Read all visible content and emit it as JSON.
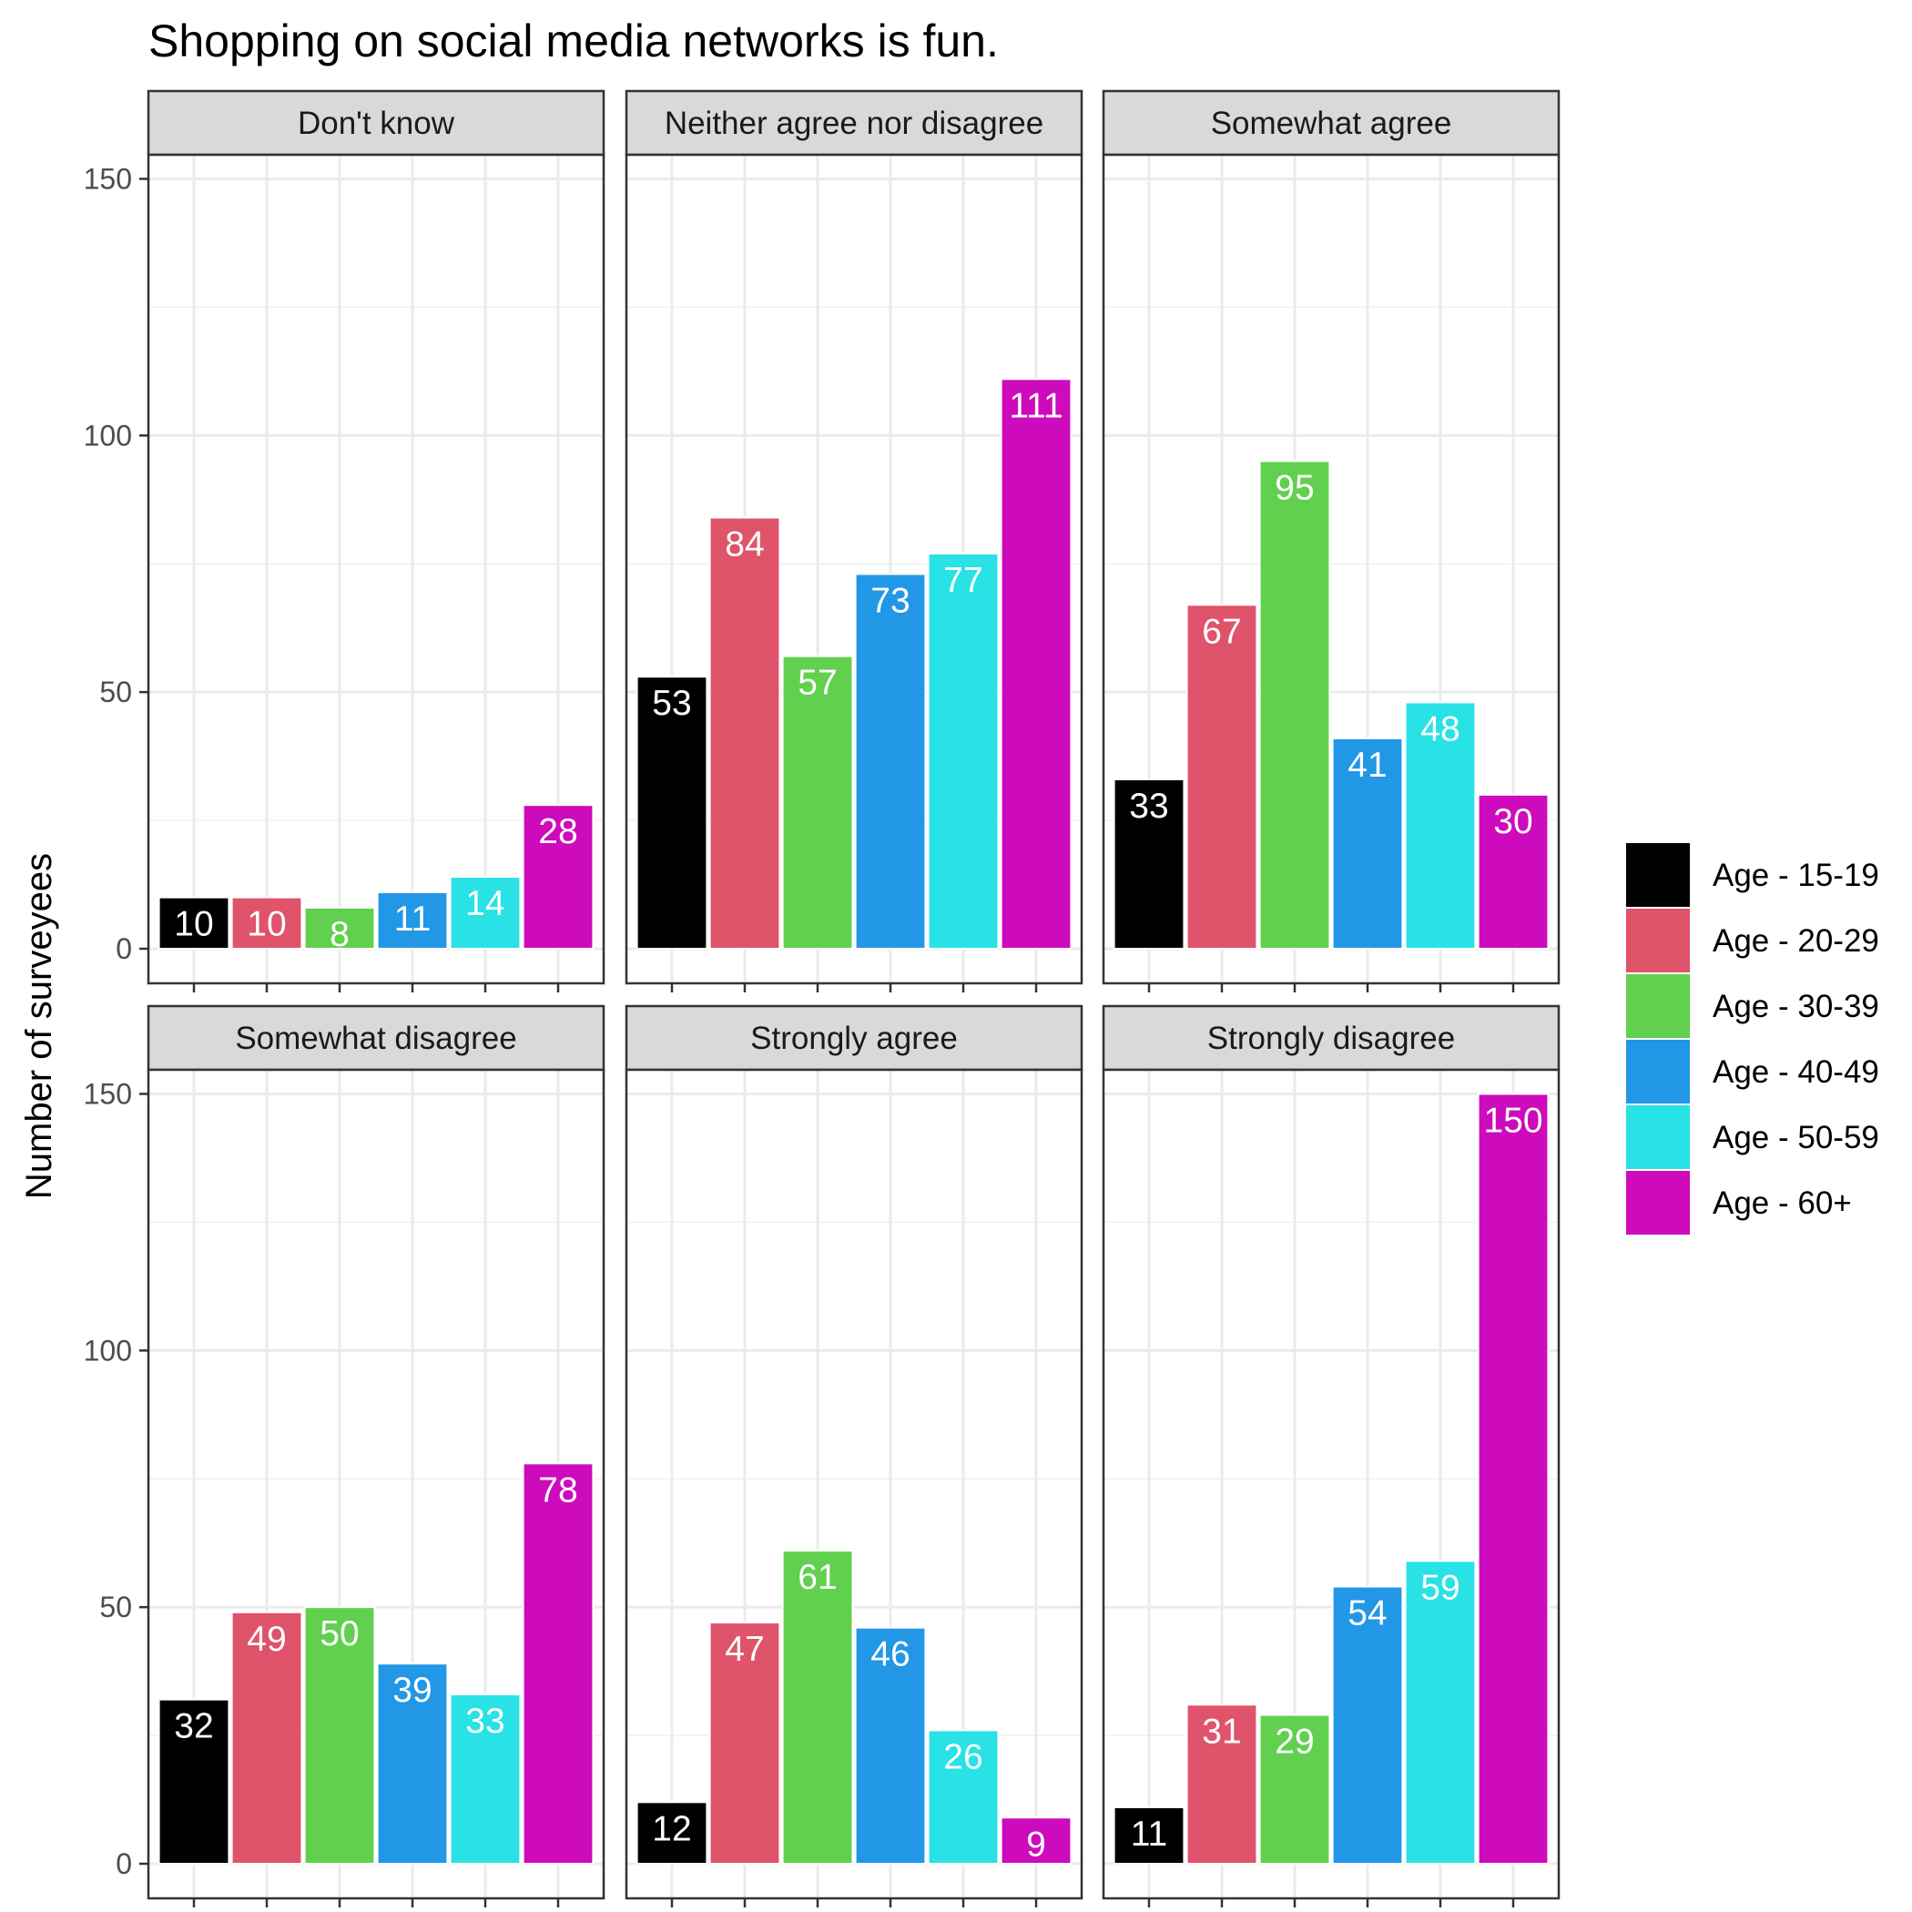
{
  "chart_data": {
    "type": "bar",
    "title": "Shopping on social media networks is fun.",
    "ylabel": "Number of surveyees",
    "xlabel": "",
    "ylim": [
      0,
      160
    ],
    "yticks": [
      0,
      50,
      100,
      150
    ],
    "grid": true,
    "legend_position": "right",
    "series": [
      {
        "name": "Age - 15-19",
        "color": "#000000"
      },
      {
        "name": "Age - 20-29",
        "color": "#DF536B"
      },
      {
        "name": "Age - 30-39",
        "color": "#61D04F"
      },
      {
        "name": "Age - 40-49",
        "color": "#2297E6"
      },
      {
        "name": "Age - 50-59",
        "color": "#28E2E5"
      },
      {
        "name": "Age - 60+",
        "color": "#CD0BBC"
      }
    ],
    "facets": [
      {
        "label": "Don't know",
        "values": [
          10,
          10,
          8,
          11,
          14,
          28
        ]
      },
      {
        "label": "Neither agree nor disagree",
        "values": [
          53,
          84,
          57,
          73,
          77,
          111
        ]
      },
      {
        "label": "Somewhat agree",
        "values": [
          33,
          67,
          95,
          41,
          48,
          30
        ]
      },
      {
        "label": "Somewhat disagree",
        "values": [
          32,
          49,
          50,
          39,
          33,
          78
        ]
      },
      {
        "label": "Strongly agree",
        "values": [
          12,
          47,
          61,
          46,
          26,
          9
        ]
      },
      {
        "label": "Strongly disagree",
        "values": [
          11,
          31,
          29,
          54,
          59,
          150
        ]
      }
    ]
  }
}
